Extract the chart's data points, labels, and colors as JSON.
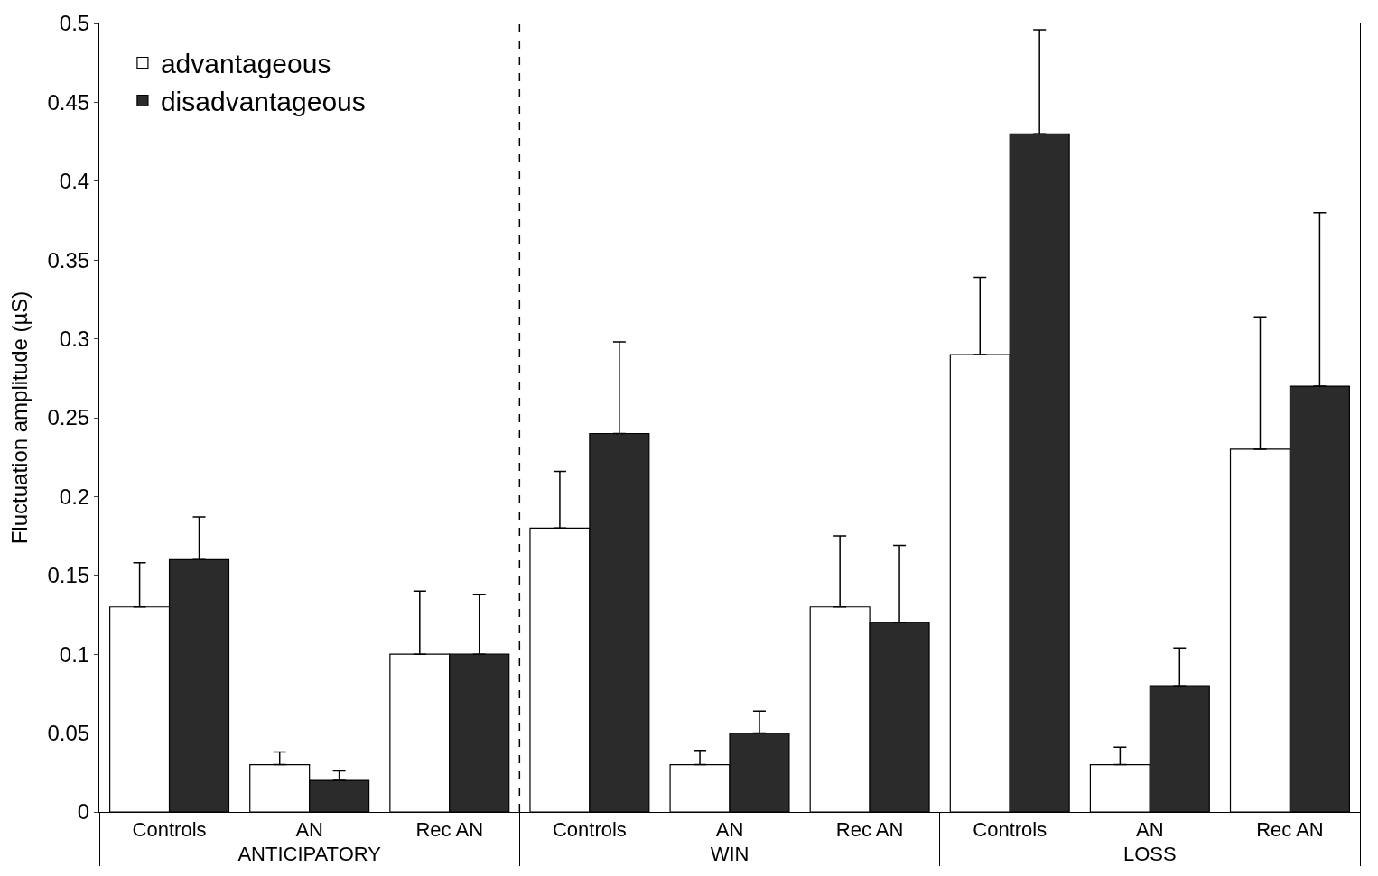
{
  "chart_data": {
    "type": "bar",
    "ylabel": "Fluctuation amplitude (µS)",
    "categories": [
      "Controls",
      "AN",
      "Rec AN",
      "Controls",
      "AN",
      "Rec AN",
      "Controls",
      "AN",
      "Rec AN"
    ],
    "annotations": [
      "ANTICIPATORY",
      "WIN",
      "LOSS"
    ],
    "series": [
      {
        "name": "advantageous",
        "color": "#ffffff",
        "values": [
          0.13,
          0.03,
          0.1,
          0.18,
          0.03,
          0.13,
          0.29,
          0.03,
          0.23
        ],
        "errors": [
          [
            0.13,
            0.158
          ],
          [
            0.03,
            0.038
          ],
          [
            0.1,
            0.14
          ],
          [
            0.18,
            0.216
          ],
          [
            0.03,
            0.039
          ],
          [
            0.13,
            0.175
          ],
          [
            0.29,
            0.339
          ],
          [
            0.03,
            0.041
          ],
          [
            0.23,
            0.314
          ]
        ]
      },
      {
        "name": "disadvantageous",
        "color": "#2b2b2b",
        "values": [
          0.16,
          0.02,
          0.1,
          0.24,
          0.05,
          0.12,
          0.43,
          0.08,
          0.27
        ],
        "errors": [
          [
            0.16,
            0.187
          ],
          [
            0.02,
            0.026
          ],
          [
            0.1,
            0.138
          ],
          [
            0.24,
            0.298
          ],
          [
            0.05,
            0.064
          ],
          [
            0.12,
            0.169
          ],
          [
            0.43,
            0.496
          ],
          [
            0.08,
            0.104
          ],
          [
            0.27,
            0.38
          ]
        ]
      }
    ],
    "ylim": [
      0,
      0.5
    ],
    "yticks": [
      0,
      0.05,
      0.1,
      0.15,
      0.2,
      0.25,
      0.3,
      0.35,
      0.4,
      0.45,
      0.5
    ],
    "legend": "top left"
  }
}
